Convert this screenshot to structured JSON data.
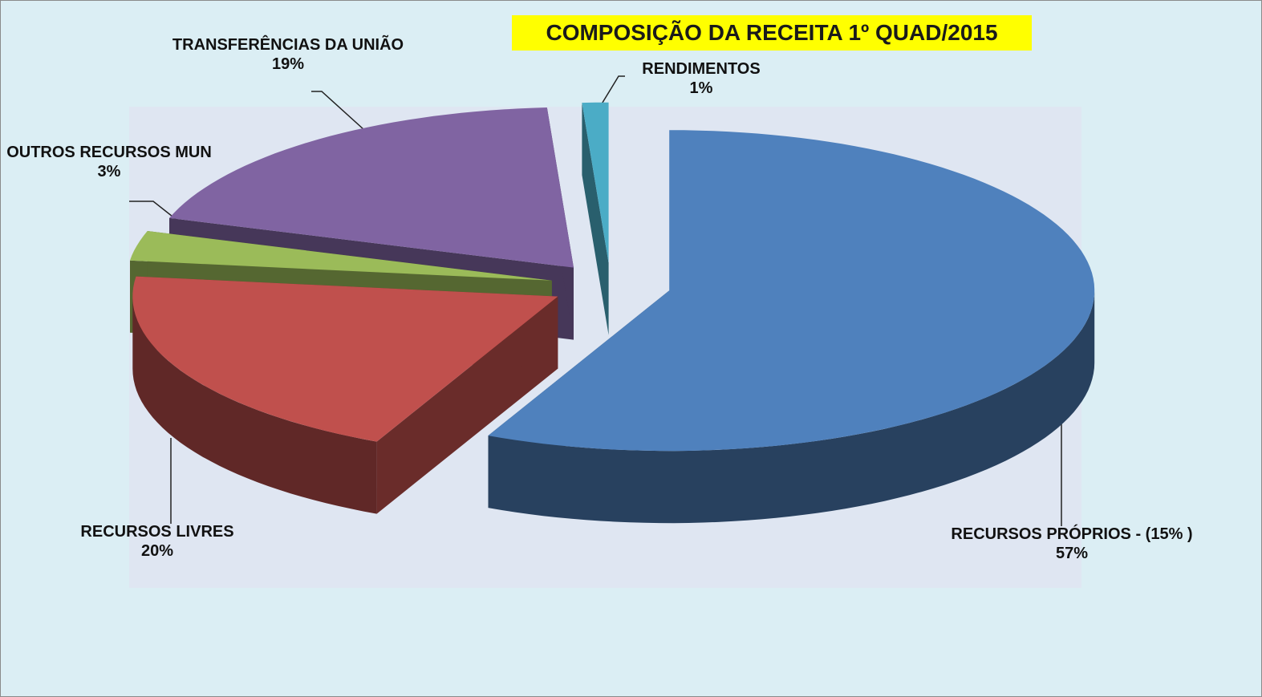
{
  "chart_data": {
    "type": "pie3d",
    "title": "COMPOSIÇÃO DA RECEITA 1º QUAD/2015",
    "categories": [
      "RECURSOS PRÓPRIOS - (15% )",
      "RECURSOS LIVRES",
      "OUTROS RECURSOS MUN",
      "TRANSFERÊNCIAS DA UNIÃO",
      "RENDIMENTOS"
    ],
    "values": [
      57,
      20,
      3,
      19,
      1
    ],
    "value_labels": [
      "57%",
      "20%",
      "3%",
      "19%",
      "1%"
    ],
    "colors": [
      "#4f81bd",
      "#c0504d",
      "#9bbb59",
      "#8064a2",
      "#4bacc6"
    ]
  }
}
